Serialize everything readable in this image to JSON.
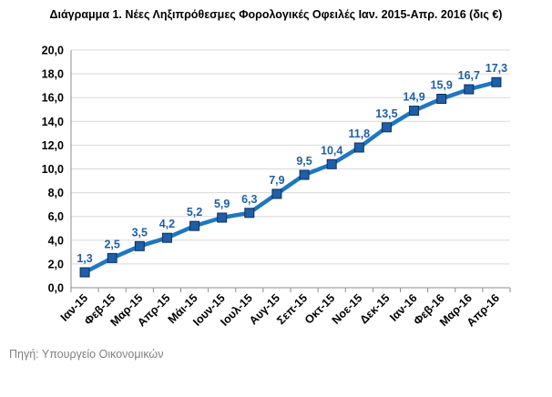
{
  "title": "Διάγραμμα 1. Νέες Ληξιπρόθεσμες Φορολογικές Οφειλές Ιαν. 2015-Απρ. 2016 (δις €)",
  "source": "Πηγή: Υπουργείο Οικονομικών",
  "colors": {
    "line": "#1f77c0",
    "marker_fill": "#1f5fa8",
    "marker_stroke": "#0d2f5c",
    "label": "#1f5fa8",
    "grid": "#d9d9d9",
    "axis": "#8c8c8c"
  },
  "chart_data": {
    "type": "line",
    "title": "Διάγραμμα 1. Νέες Ληξιπρόθεσμες Φορολογικές Οφειλές Ιαν. 2015-Απρ. 2016 (δις €)",
    "xlabel": "",
    "ylabel": "",
    "ylim": [
      0,
      20
    ],
    "ytick_step": 2,
    "ytick_labels": [
      "0,0",
      "2,0",
      "4,0",
      "6,0",
      "8,0",
      "10,0",
      "12,0",
      "14,0",
      "16,0",
      "18,0",
      "20,0"
    ],
    "grid": "horizontal",
    "legend": "none",
    "categories": [
      "Ιαν-15",
      "Φεβ-15",
      "Μαρ-15",
      "Απρ-15",
      "Μάι-15",
      "Ιουν-15",
      "Ιουλ-15",
      "Αυγ-15",
      "Σεπ-15",
      "Οκτ-15",
      "Νοε-15",
      "Δεκ-15",
      "Ιαν-16",
      "Φεβ-16",
      "Μαρ-16",
      "Απρ-16"
    ],
    "series": [
      {
        "values": [
          1.3,
          2.5,
          3.5,
          4.2,
          5.2,
          5.9,
          6.3,
          7.9,
          9.5,
          10.4,
          11.8,
          13.5,
          14.9,
          15.9,
          16.7,
          17.3
        ],
        "labels": [
          "1,3",
          "2,5",
          "3,5",
          "4,2",
          "5,2",
          "5,9",
          "6,3",
          "7,9",
          "9,5",
          "10,4",
          "11,8",
          "13,5",
          "14,9",
          "15,9",
          "16,7",
          "17,3"
        ]
      }
    ]
  }
}
